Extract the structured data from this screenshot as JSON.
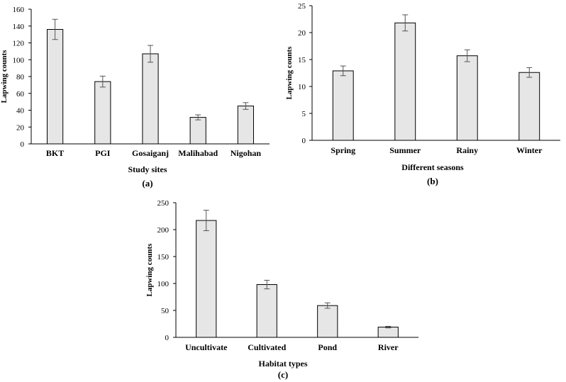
{
  "chart_data": [
    {
      "type": "bar",
      "panel_label": "(a)",
      "categories": [
        "BKT",
        "PGI",
        "Gosaiganj",
        "Malihabad",
        "Nigohan"
      ],
      "values": [
        136,
        74,
        107,
        31.5,
        45
      ],
      "errors": [
        12,
        6.5,
        10,
        3,
        4
      ],
      "xlabel": "Study sites",
      "ylabel": "Lapwing counts",
      "ylim": [
        0,
        160
      ],
      "yticks": [
        "0",
        "20",
        "40",
        "60",
        "80",
        "100",
        "120",
        "140",
        "160"
      ],
      "bar_color": "#e6e6e6"
    },
    {
      "type": "bar",
      "panel_label": "(b)",
      "categories": [
        "Spring",
        "Summer",
        "Rainy",
        "Winter"
      ],
      "values": [
        12.9,
        21.8,
        15.7,
        12.6
      ],
      "errors": [
        0.9,
        1.5,
        1.1,
        0.9
      ],
      "xlabel": "Different seasons",
      "ylabel": "Lapwing counts",
      "ylim": [
        0,
        25
      ],
      "yticks": [
        "0",
        "5",
        "10",
        "15",
        "20",
        "25"
      ],
      "bar_color": "#e6e6e6"
    },
    {
      "type": "bar",
      "panel_label": "(c)",
      "categories": [
        "Uncultivate",
        "Cultivated",
        "Pond",
        "River"
      ],
      "values": [
        217,
        98,
        59,
        19
      ],
      "errors": [
        19,
        8,
        5,
        1.5
      ],
      "xlabel": "Habitat types",
      "ylabel": "Lapwing counts",
      "ylim": [
        0,
        250
      ],
      "yticks": [
        "0",
        "50",
        "100",
        "150",
        "200",
        "250"
      ],
      "bar_color": "#e6e6e6"
    }
  ]
}
